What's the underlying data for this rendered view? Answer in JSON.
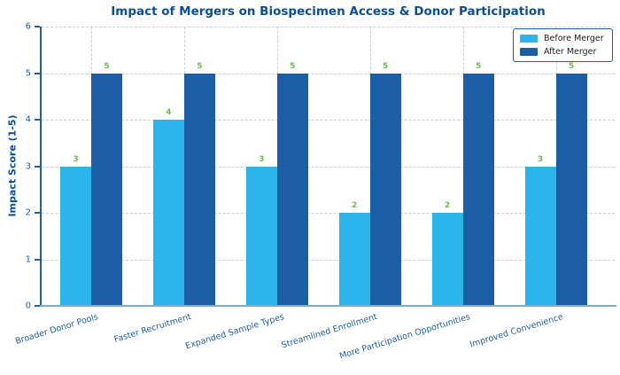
{
  "title": "Impact of Mergers on Biospecimen Access & Donor Participation",
  "chart_data": {
    "type": "bar",
    "title": "Impact of Mergers on Biospecimen Access & Donor Participation",
    "categories": [
      "Broader Donor Pools",
      "Faster Recruitment",
      "Expanded Sample Types",
      "Streamlined Enrollment",
      "More Participation Opportunities",
      "Improved Convenience"
    ],
    "series": [
      {
        "name": "Before Merger",
        "color": "#2bb5ea",
        "values": [
          3,
          4,
          3,
          2,
          2,
          3
        ]
      },
      {
        "name": "After Merger",
        "color": "#1b5ea6",
        "values": [
          5,
          5,
          5,
          5,
          5,
          5
        ]
      }
    ],
    "xlabel": "",
    "ylabel": "Impact Score (1-5)",
    "ylim": [
      0,
      6
    ],
    "yticks": [
      0,
      1,
      2,
      3,
      4,
      5,
      6
    ],
    "grid": true,
    "grid_style": "dashed",
    "legend_position": "upper right",
    "value_labels_shown": true
  },
  "colors": {
    "title": "#0b4d9d",
    "axis_label": "#0b4d9d",
    "tick_label": "#1f5fa8",
    "value_label": "#6abf4b",
    "gridline": "#cdcdcd",
    "spine_left": "#1f5fa8",
    "spine_bottom": "#7fa8d2",
    "legend_border": "#1f5fa8",
    "legend_text": "#212121",
    "background": "#ffffff"
  }
}
